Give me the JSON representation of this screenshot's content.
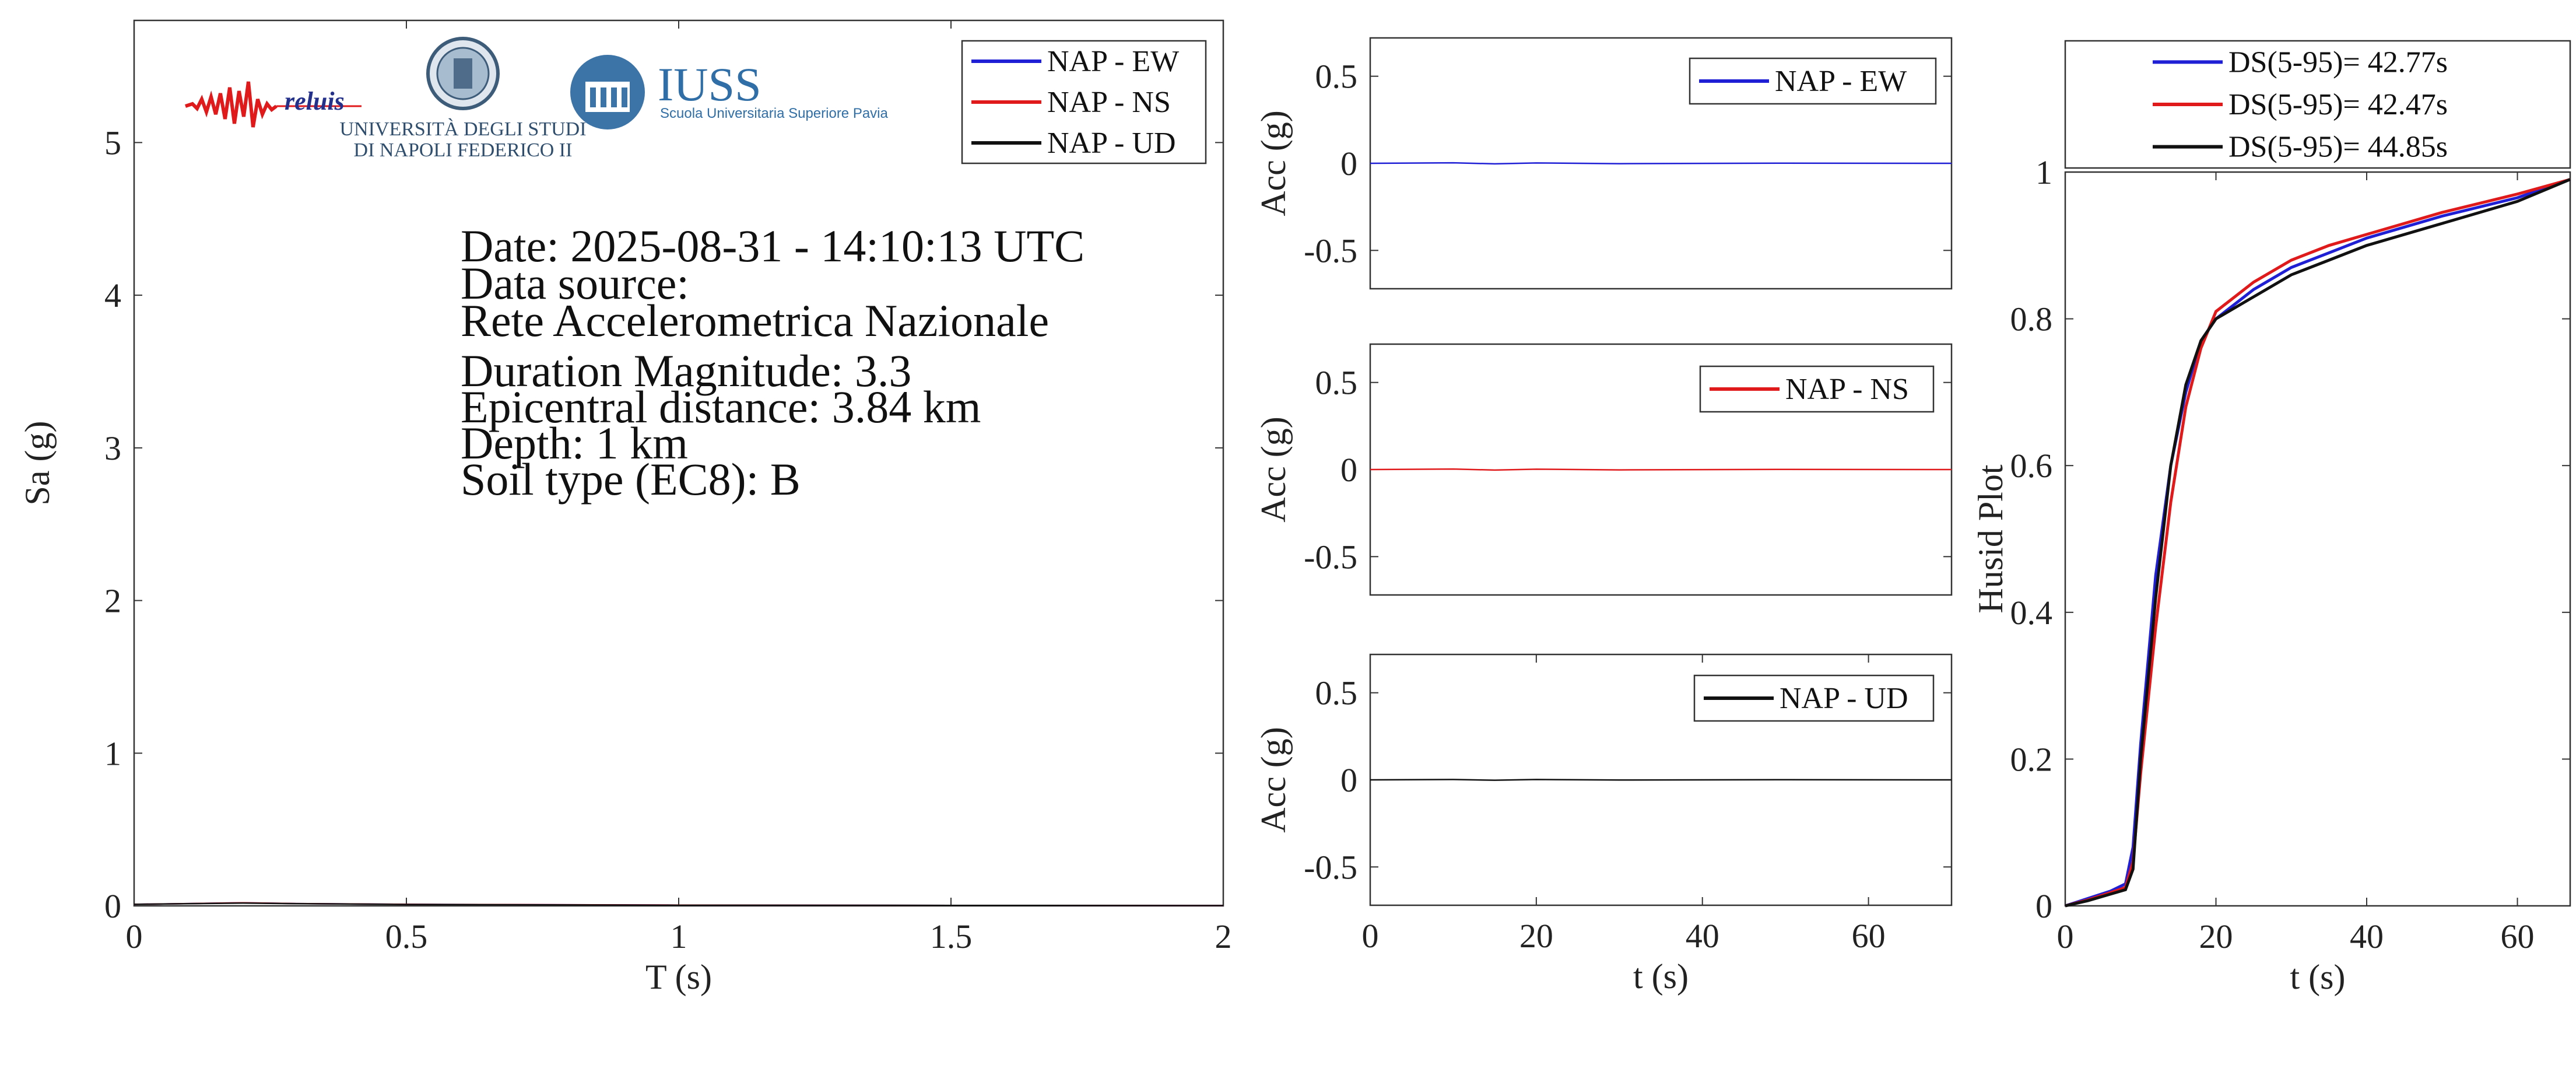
{
  "logos": {
    "reluis": "reluis",
    "unina_line1": "UNIVERSITÀ DEGLI STUDI",
    "unina_line2": "DI NAPOLI FEDERICO II",
    "iuss_title": "IUSS",
    "iuss_sub": "Scuola Universitaria Superiore Pavia"
  },
  "info": {
    "date": "Date: 2025-08-31 - 14:10:13 UTC",
    "source_label": "Data source:",
    "source": "Rete Accelerometrica Nazionale",
    "magnitude": "Duration Magnitude: 3.3",
    "distance": "Epicentral distance: 3.84 km",
    "depth": "Depth: 1 km",
    "soil": "Soil type (EC8): B"
  },
  "colors": {
    "ew": "#1f1fd6",
    "ns": "#e0191b",
    "ud": "#111111"
  },
  "chart_data": [
    {
      "type": "line",
      "xlabel": "T (s)",
      "ylabel": "Sa (g)",
      "xlim": [
        0,
        2
      ],
      "ylim": [
        0,
        5.8
      ],
      "xticks": [
        "0",
        "0.5",
        "1",
        "1.5",
        "2"
      ],
      "yticks": [
        "0",
        "1",
        "2",
        "3",
        "4",
        "5"
      ],
      "legend": "top-right",
      "x": [
        0,
        0.1,
        0.2,
        0.3,
        0.5,
        1.0,
        1.5,
        2.0
      ],
      "series": [
        {
          "name": "NAP - EW",
          "color": "#1f1fd6",
          "values": [
            0.01,
            0.015,
            0.02,
            0.015,
            0.01,
            0.005,
            0.003,
            0.002
          ]
        },
        {
          "name": "NAP - NS",
          "color": "#e0191b",
          "values": [
            0.01,
            0.015,
            0.02,
            0.015,
            0.01,
            0.005,
            0.003,
            0.002
          ]
        },
        {
          "name": "NAP - UD",
          "color": "#111111",
          "values": [
            0.01,
            0.014,
            0.018,
            0.014,
            0.009,
            0.004,
            0.003,
            0.002
          ]
        }
      ]
    },
    {
      "type": "line",
      "xlabel": "",
      "ylabel": "Acc (g)",
      "xlim": [
        0,
        70
      ],
      "ylim": [
        -0.72,
        0.72
      ],
      "xticks": [],
      "yticks": [
        "0.5",
        "0",
        "-0.5"
      ],
      "legend": "top-right",
      "series": [
        {
          "name": "NAP - EW",
          "color": "#1f1fd6",
          "values": [
            0,
            0.003,
            -0.003,
            0.002,
            -0.002,
            0.001,
            0
          ]
        }
      ],
      "x": [
        0,
        10,
        15,
        20,
        30,
        50,
        70
      ]
    },
    {
      "type": "line",
      "xlabel": "",
      "ylabel": "Acc (g)",
      "xlim": [
        0,
        70
      ],
      "ylim": [
        -0.72,
        0.72
      ],
      "xticks": [],
      "yticks": [
        "0.5",
        "0",
        "-0.5"
      ],
      "legend": "top-right",
      "series": [
        {
          "name": "NAP - NS",
          "color": "#e0191b",
          "values": [
            0,
            0.003,
            -0.003,
            0.002,
            -0.002,
            0.001,
            0
          ]
        }
      ],
      "x": [
        0,
        10,
        15,
        20,
        30,
        50,
        70
      ]
    },
    {
      "type": "line",
      "xlabel": "t (s)",
      "ylabel": "Acc (g)",
      "xlim": [
        0,
        70
      ],
      "ylim": [
        -0.72,
        0.72
      ],
      "xticks": [
        "0",
        "20",
        "40",
        "60"
      ],
      "yticks": [
        "0.5",
        "0",
        "-0.5"
      ],
      "legend": "top-right",
      "series": [
        {
          "name": "NAP - UD",
          "color": "#111111",
          "values": [
            0,
            0.002,
            -0.002,
            0.002,
            -0.001,
            0.001,
            0
          ]
        }
      ],
      "x": [
        0,
        10,
        15,
        20,
        30,
        50,
        70
      ]
    },
    {
      "type": "line",
      "xlabel": "t (s)",
      "ylabel": "Husid Plot",
      "xlim": [
        0,
        67
      ],
      "ylim": [
        0,
        1
      ],
      "xticks": [
        "0",
        "20",
        "40",
        "60"
      ],
      "yticks": [
        "0",
        "0.2",
        "0.4",
        "0.6",
        "0.8",
        "1"
      ],
      "legend": "top-outside",
      "x": [
        0,
        3,
        6,
        8,
        9,
        10,
        12,
        14,
        16,
        18,
        20,
        25,
        30,
        35,
        40,
        50,
        60,
        67
      ],
      "series": [
        {
          "name": "DS(5-95)= 42.77s",
          "color": "#1f1fd6",
          "values": [
            0,
            0.01,
            0.02,
            0.03,
            0.08,
            0.22,
            0.45,
            0.6,
            0.7,
            0.77,
            0.8,
            0.84,
            0.87,
            0.89,
            0.91,
            0.94,
            0.965,
            0.99
          ]
        },
        {
          "name": "DS(5-95)= 42.47s",
          "color": "#e0191b",
          "values": [
            0,
            0.008,
            0.018,
            0.025,
            0.06,
            0.18,
            0.38,
            0.55,
            0.68,
            0.76,
            0.81,
            0.85,
            0.88,
            0.9,
            0.915,
            0.945,
            0.97,
            0.99
          ]
        },
        {
          "name": "DS(5-95)= 44.85s",
          "color": "#111111",
          "values": [
            0,
            0.007,
            0.016,
            0.022,
            0.05,
            0.2,
            0.42,
            0.6,
            0.71,
            0.77,
            0.8,
            0.83,
            0.86,
            0.88,
            0.9,
            0.93,
            0.96,
            0.99
          ]
        }
      ]
    }
  ]
}
